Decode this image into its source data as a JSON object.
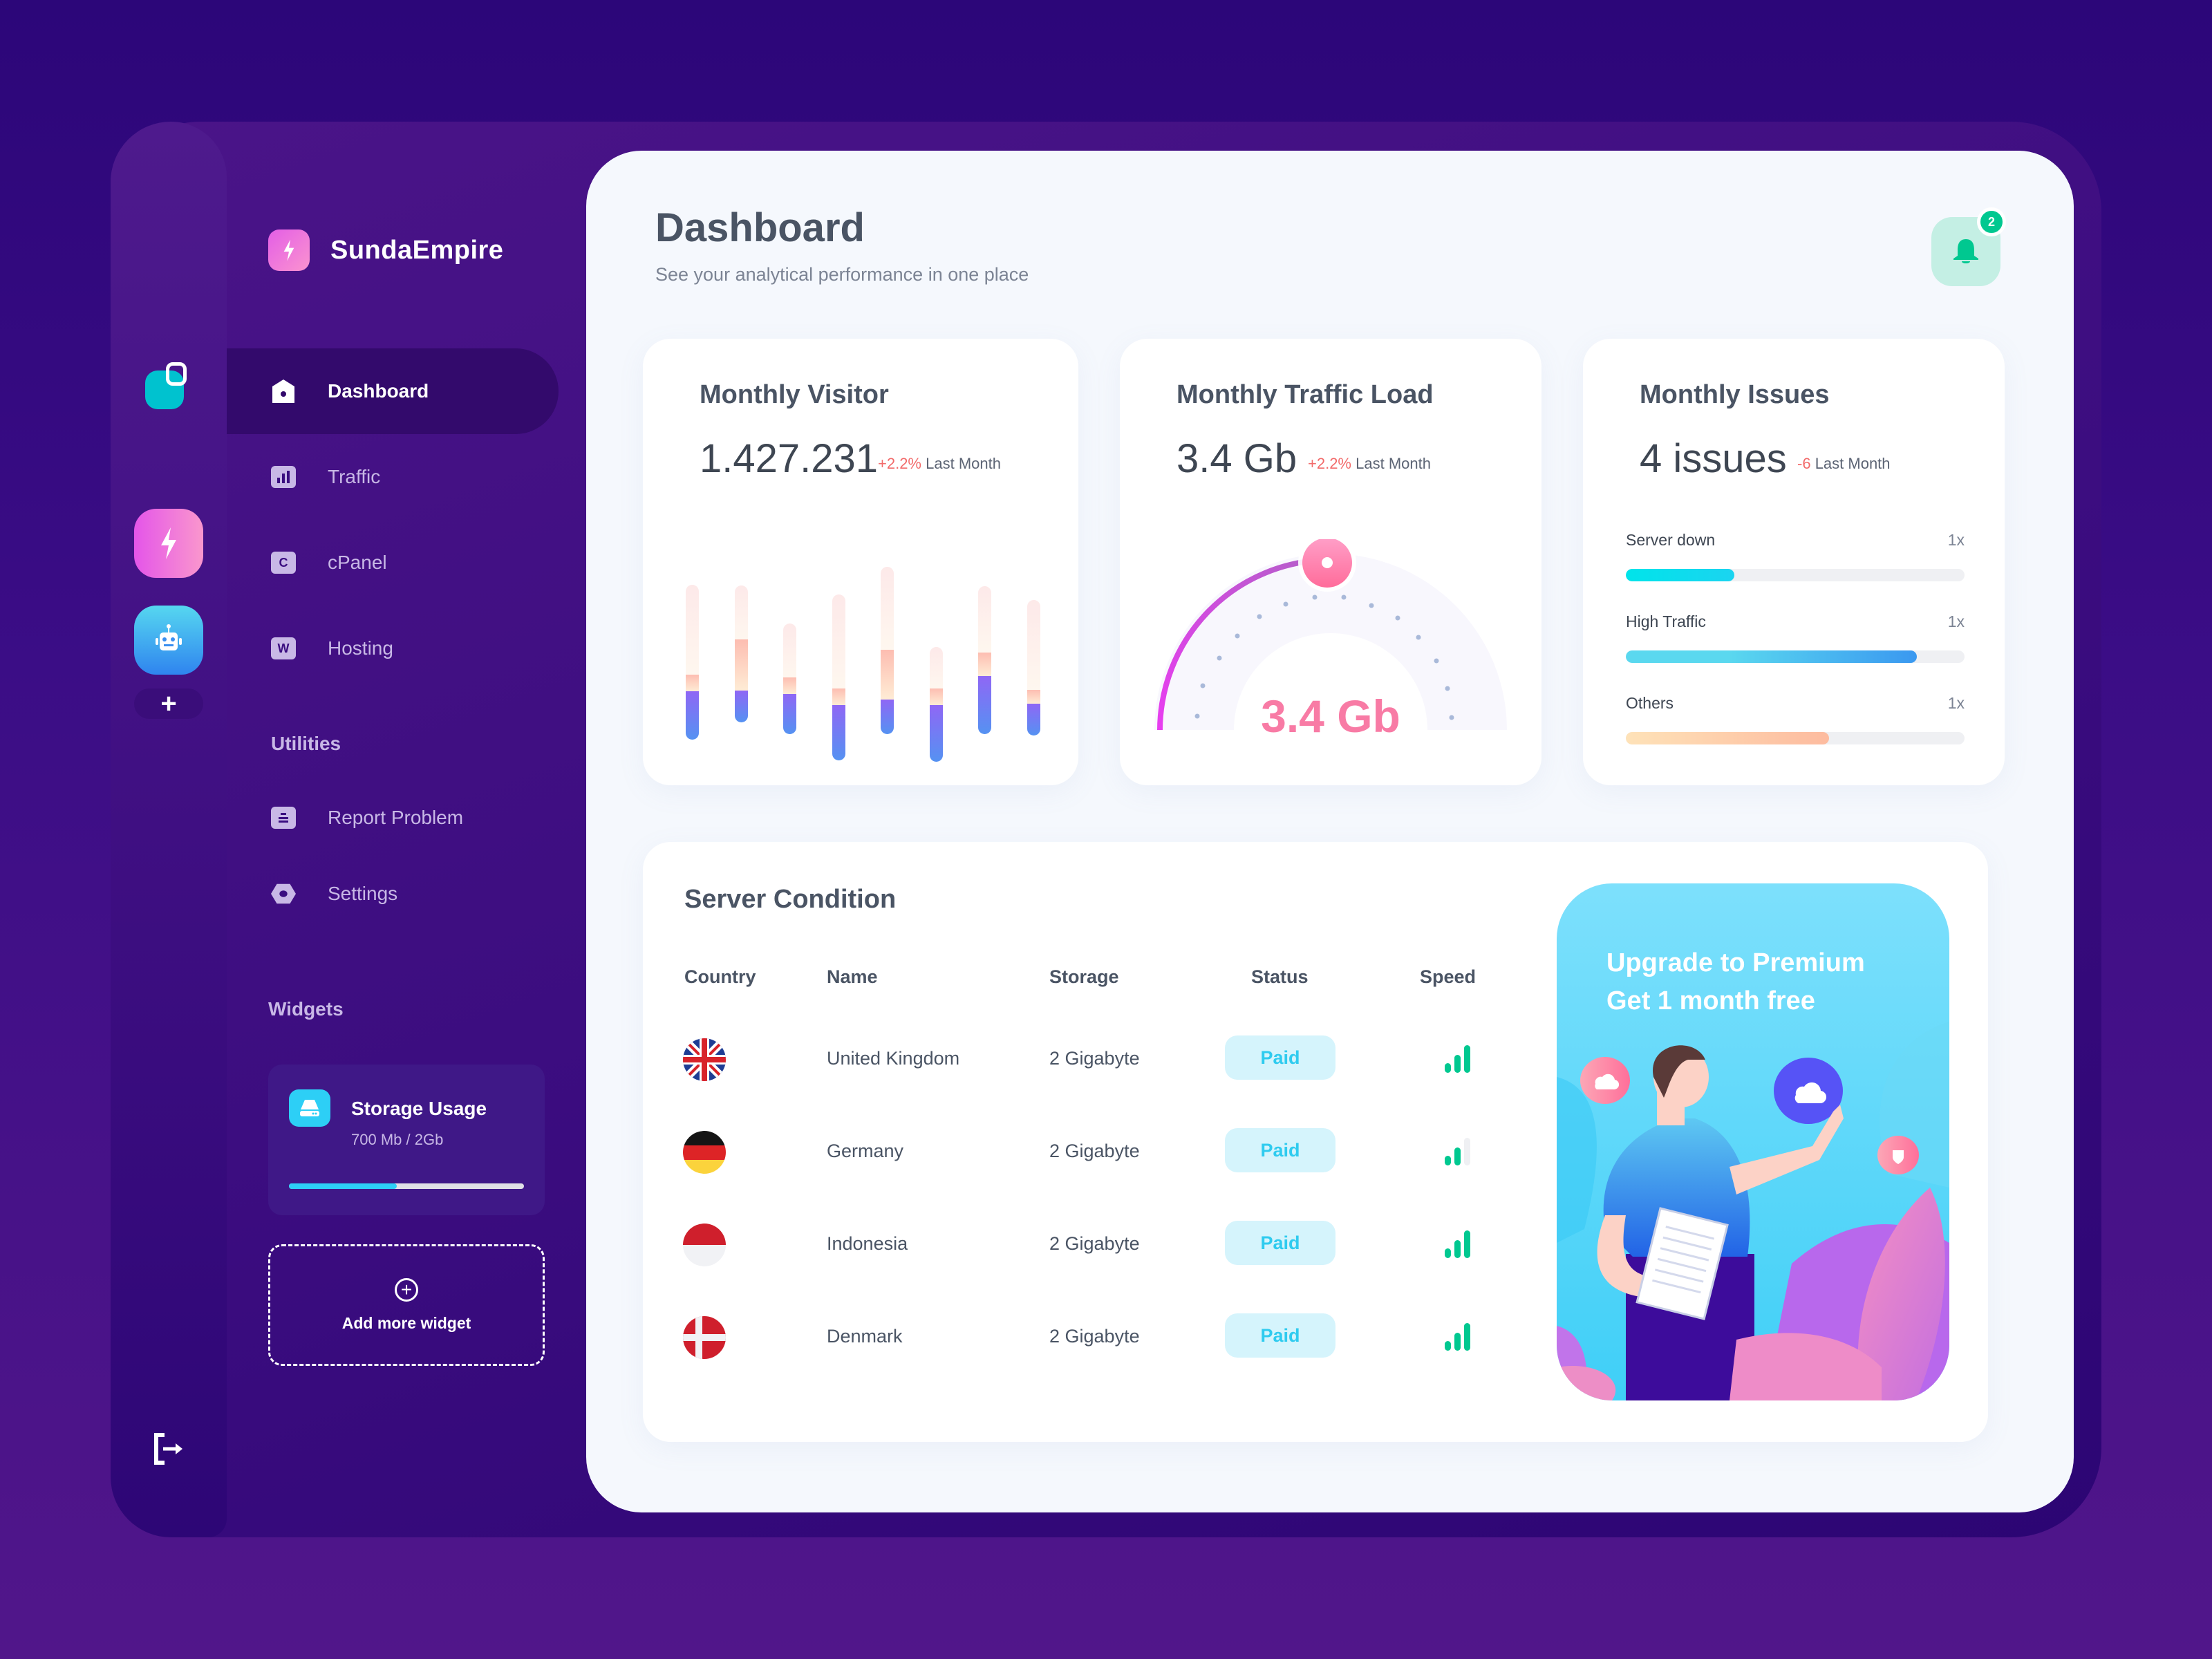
{
  "brand": {
    "name": "SundaEmpire"
  },
  "rail": {
    "items": [
      "bolt-app",
      "robot-app"
    ],
    "add_label": "+"
  },
  "sidebar": {
    "main_items": [
      {
        "label": "Dashboard",
        "icon": "home-icon",
        "active": true
      },
      {
        "label": "Traffic",
        "icon": "bar-chart-icon",
        "glyph": ""
      },
      {
        "label": "cPanel",
        "icon": "cpanel-icon",
        "glyph": "C"
      },
      {
        "label": "Hosting",
        "icon": "hosting-icon",
        "glyph": "W"
      }
    ],
    "utilities_label": "Utilities",
    "utility_items": [
      {
        "label": "Report Problem",
        "icon": "report-icon"
      },
      {
        "label": "Settings",
        "icon": "settings-icon"
      }
    ],
    "widgets_label": "Widgets",
    "storage": {
      "title": "Storage Usage",
      "subtitle": "700 Mb / 2Gb",
      "percent": 46
    },
    "add_widget_label": "Add more widget"
  },
  "header": {
    "title": "Dashboard",
    "subtitle": "See your analytical performance in one place",
    "notification_count": "2"
  },
  "cards": {
    "visitor": {
      "title": "Monthly Visitor",
      "value": "1.427.231",
      "delta": "+2.2%",
      "delta_label": "Last Month"
    },
    "traffic": {
      "title": "Monthly Traffic Load",
      "value": "3.4 Gb",
      "delta": "+2.2%",
      "delta_label": "Last Month",
      "gauge_value": "3.4 Gb"
    },
    "issues": {
      "title": "Monthly Issues",
      "value": "4 issues",
      "delta": "-6",
      "delta_label": "Last Month",
      "items": [
        {
          "label": "Server down",
          "count": "1x",
          "percent": 32
        },
        {
          "label": "High Traffic",
          "count": "1x",
          "percent": 86
        },
        {
          "label": "Others",
          "count": "1x",
          "percent": 60
        }
      ]
    }
  },
  "chart_data": {
    "type": "bar",
    "title": "Monthly Visitor",
    "note": "stacked pill bars; segments top(faint), mid(peach), bottom(blue-purple) in relative pixel units",
    "categories": [
      "1",
      "2",
      "3",
      "4",
      "5",
      "6",
      "7",
      "8"
    ],
    "series": [
      {
        "name": "top",
        "values": [
          130,
          78,
          78,
          136,
          120,
          60,
          96,
          130
        ]
      },
      {
        "name": "mid",
        "values": [
          24,
          74,
          24,
          24,
          72,
          24,
          34,
          20
        ]
      },
      {
        "name": "bottom",
        "values": [
          70,
          46,
          58,
          80,
          50,
          82,
          84,
          46
        ]
      }
    ]
  },
  "server": {
    "title": "Server Condition",
    "columns": [
      "Country",
      "Name",
      "Storage",
      "Status",
      "Speed"
    ],
    "rows": [
      {
        "flag": "uk",
        "name": "United Kingdom",
        "storage": "2 Gigabyte",
        "status": "Paid",
        "speed": 3
      },
      {
        "flag": "de",
        "name": "Germany",
        "storage": "2 Gigabyte",
        "status": "Paid",
        "speed": 2
      },
      {
        "flag": "id",
        "name": "Indonesia",
        "storage": "2 Gigabyte",
        "status": "Paid",
        "speed": 3
      },
      {
        "flag": "dk",
        "name": "Denmark",
        "storage": "2 Gigabyte",
        "status": "Paid",
        "speed": 3
      }
    ]
  },
  "premium": {
    "line1": "Upgrade to Premium",
    "line2": "Get 1 month free"
  },
  "colors": {
    "accent_pink": "#f87ba5",
    "accent_green": "#00c890",
    "accent_cyan": "#2fcbef",
    "bg_purple": "#3c0d80"
  }
}
